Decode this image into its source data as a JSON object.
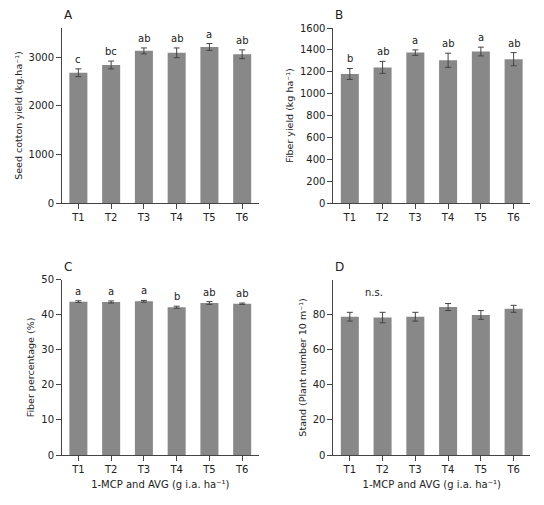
{
  "chart_data": [
    {
      "type": "bar",
      "title": "A",
      "categories": [
        "T1",
        "T2",
        "T3",
        "T4",
        "T5",
        "T6"
      ],
      "values": [
        2680,
        2840,
        3130,
        3090,
        3210,
        3060
      ],
      "errors": [
        80,
        80,
        60,
        100,
        70,
        90
      ],
      "ylabel": "Seed cotton yield (kg.ha⁻¹)",
      "ylim": [
        0,
        3600
      ],
      "yticks": [
        0,
        1000,
        2000,
        3000
      ],
      "letters": [
        "c",
        "bc",
        "ab",
        "ab",
        "a",
        "ab"
      ],
      "color": "#888888",
      "grid": false
    },
    {
      "type": "bar",
      "title": "B",
      "categories": [
        "T1",
        "T2",
        "T3",
        "T4",
        "T5",
        "T6"
      ],
      "values": [
        1180,
        1240,
        1375,
        1305,
        1385,
        1315
      ],
      "errors": [
        50,
        55,
        25,
        65,
        40,
        60
      ],
      "ylabel": "Fiber yield (kg ha⁻¹)",
      "ylim": [
        0,
        1600
      ],
      "yticks": [
        0,
        200,
        400,
        600,
        800,
        1000,
        1200,
        1400,
        1600
      ],
      "letters": [
        "b",
        "ab",
        "a",
        "ab",
        "a",
        "ab"
      ],
      "color": "#888888",
      "grid": false
    },
    {
      "type": "bar",
      "title": "C",
      "categories": [
        "T1",
        "T2",
        "T3",
        "T4",
        "T5",
        "T6"
      ],
      "values": [
        43.8,
        43.7,
        43.9,
        42.2,
        43.4,
        43.2
      ],
      "errors": [
        0.25,
        0.3,
        0.25,
        0.3,
        0.4,
        0.2
      ],
      "ylabel": "Fiber percentage (%)",
      "xlabel": "1-MCP and AVG (g i.a. ha⁻¹)",
      "ylim": [
        0,
        50
      ],
      "yticks": [
        0,
        10,
        20,
        30,
        40,
        50
      ],
      "letters": [
        "a",
        "a",
        "a",
        "b",
        "ab",
        "ab"
      ],
      "color": "#888888",
      "grid": false
    },
    {
      "type": "bar",
      "title": "D",
      "categories": [
        "T1",
        "T2",
        "T3",
        "T4",
        "T5",
        "T6"
      ],
      "values": [
        79.0,
        78.5,
        79.0,
        84.5,
        80.0,
        83.5
      ],
      "errors": [
        2.5,
        3.0,
        2.5,
        2.0,
        2.5,
        2.0
      ],
      "ylabel": "Stand (Plant number 10 m⁻¹)",
      "xlabel": "1-MCP and AVG (g i.a. ha⁻¹)",
      "ylim": [
        0,
        100
      ],
      "yticks": [
        0,
        20,
        40,
        60,
        80
      ],
      "annotations": [
        "n.s."
      ],
      "color": "#888888",
      "grid": false
    }
  ]
}
